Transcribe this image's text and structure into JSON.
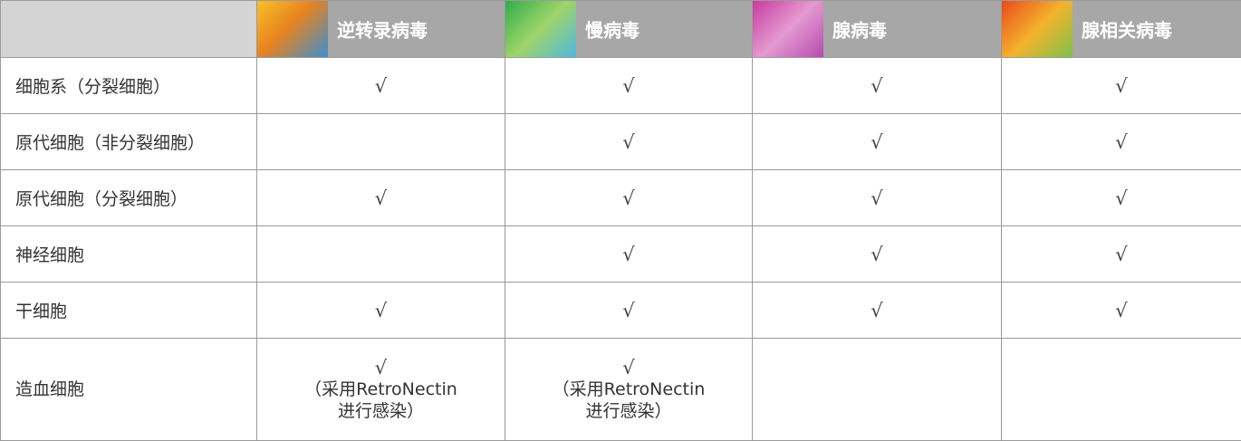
{
  "table": {
    "header": [
      null,
      "逆转录病毒",
      "慢病毒",
      "腺病毒",
      "腺相关病毒"
    ],
    "rows": [
      [
        "细胞系（分裂细胞）",
        "√",
        "√",
        "√",
        "√"
      ],
      [
        "原代细胞（非分裂细胞）",
        null,
        "√",
        "√",
        "√"
      ],
      [
        "原代细胞（分裂细胞）",
        "√",
        "√",
        "√",
        "√"
      ],
      [
        "神经细胞",
        null,
        "√",
        "√",
        "√"
      ],
      [
        "干细胞",
        "√",
        "√",
        "√",
        "√"
      ],
      [
        "造血细胞",
        [
          "√",
          "（采用RetroNectin",
          "进行感染）"
        ],
        [
          "√",
          "（采用RetroNectin",
          "进行感染）"
        ],
        null,
        null
      ]
    ]
  }
}
